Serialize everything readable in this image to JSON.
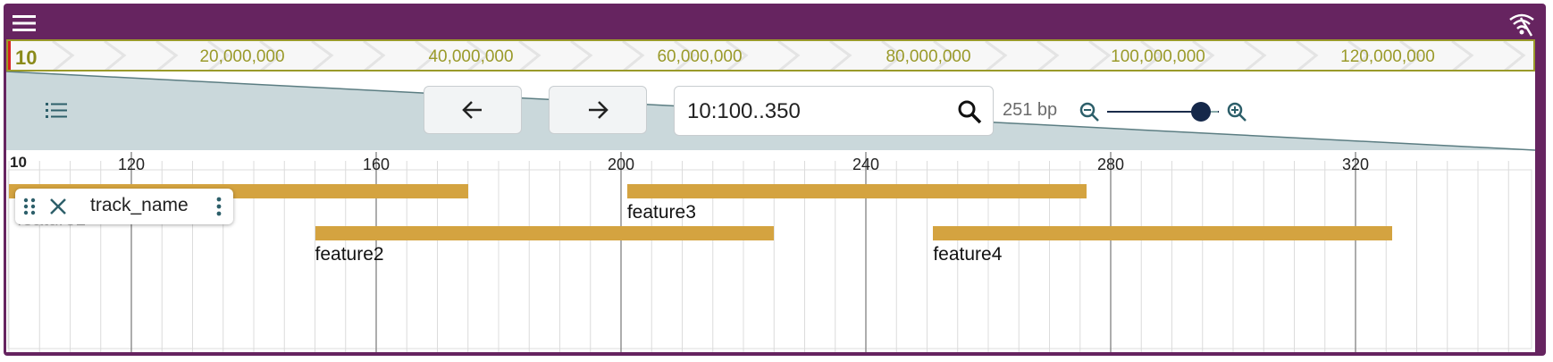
{
  "colors": {
    "frame": "#662460",
    "feature": "#d4a340",
    "wedge": "#cad8db",
    "overview_text": "#9a9a2a",
    "slider": "#15284a"
  },
  "topbar": {
    "menu_icon": "hamburger-menu-icon",
    "connection_icon": "wifi-icon"
  },
  "overview": {
    "chromosome": "10",
    "labels": [
      "20,000,000",
      "40,000,000",
      "60,000,000",
      "80,000,000",
      "100,000,000",
      "120,000,000"
    ]
  },
  "toolbar": {
    "track_selector_icon": "list-icon",
    "back_icon": "arrow-left-icon",
    "forward_icon": "arrow-right-icon",
    "location_value": "10:100..350",
    "search_icon": "search-icon",
    "bp_label": "251 bp",
    "zoom_out_icon": "zoom-out-icon",
    "zoom_in_icon": "zoom-in-icon",
    "zoom_level": 0.8
  },
  "ruler": {
    "chromosome": "10",
    "ticks": [
      "120",
      "160",
      "200",
      "240",
      "280",
      "320"
    ]
  },
  "track": {
    "name": "track_name",
    "drag_icon": "drag-handle-icon",
    "close_icon": "close-icon",
    "menu_icon": "kebab-menu-icon",
    "features": [
      {
        "name": "feature1",
        "start": 100,
        "end": 175
      },
      {
        "name": "feature2",
        "start": 150,
        "end": 225
      },
      {
        "name": "feature3",
        "start": 201,
        "end": 276
      },
      {
        "name": "feature4",
        "start": 251,
        "end": 326
      }
    ]
  }
}
